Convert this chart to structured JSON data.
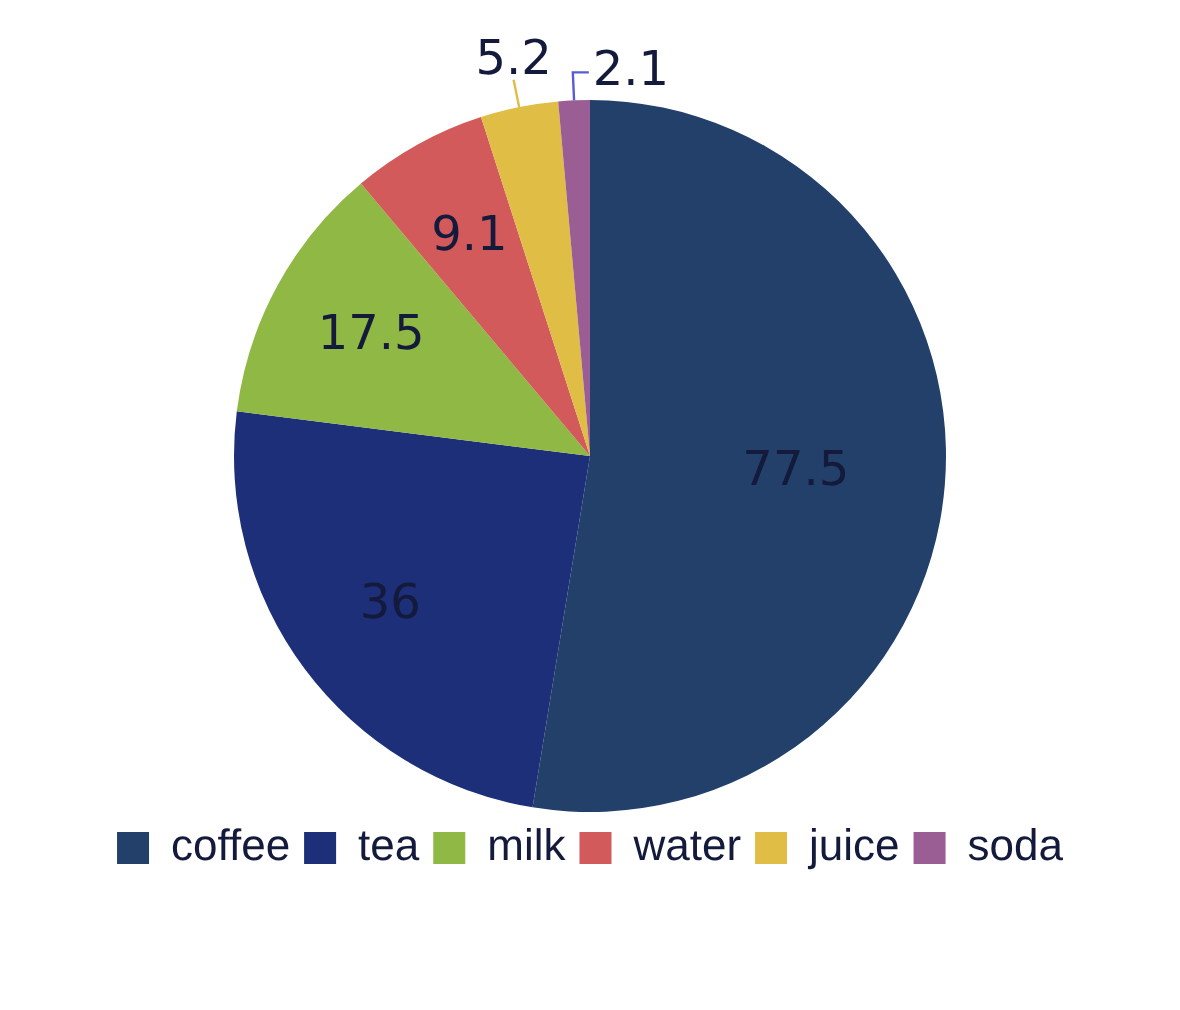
{
  "chart_data": {
    "type": "pie",
    "categories": [
      "coffee",
      "tea",
      "milk",
      "water",
      "juice",
      "soda"
    ],
    "values": [
      77.5,
      36,
      17.5,
      9.1,
      5.2,
      2.1
    ],
    "colors": [
      "#22406a",
      "#1c2f78",
      "#8fb844",
      "#d25a5a",
      "#e0bd45",
      "#9a5e95"
    ],
    "data_labels": true,
    "legend": "bottom"
  }
}
